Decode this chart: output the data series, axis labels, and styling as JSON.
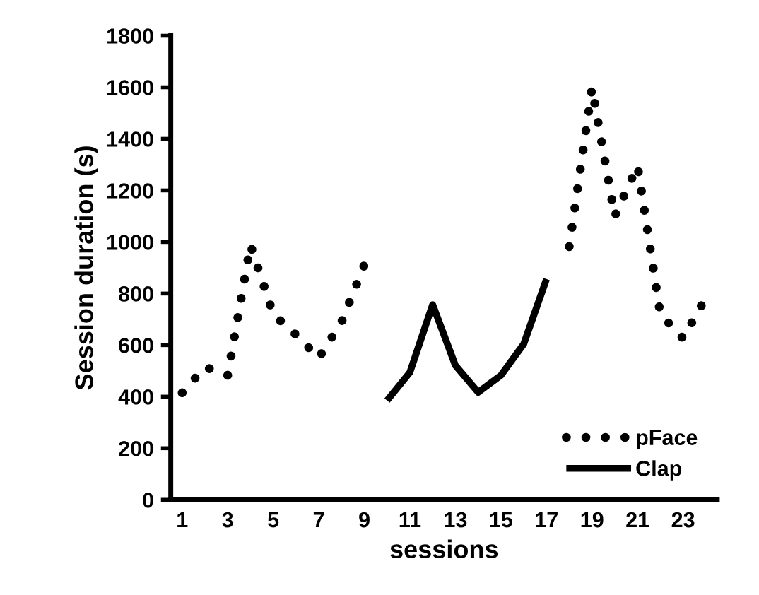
{
  "chart_data": {
    "type": "line",
    "xlabel": "sessions",
    "ylabel": "Session duration (s)",
    "x": [
      1,
      2,
      3,
      4,
      5,
      6,
      7,
      8,
      9,
      10,
      11,
      12,
      13,
      14,
      15,
      16,
      17,
      18,
      19,
      20,
      21,
      22,
      23,
      24
    ],
    "series": [
      {
        "name": "pFace",
        "color": "#000000",
        "line_style": "dotted",
        "values": [
          415,
          515,
          483,
          988,
          720,
          640,
          550,
          690,
          911,
          null,
          null,
          null,
          null,
          null,
          null,
          null,
          null,
          982,
          1597,
          1100,
          1295,
          720,
          626,
          785
        ]
      },
      {
        "name": "Clap",
        "color": "#000000",
        "line_style": "solid",
        "values": [
          null,
          null,
          null,
          null,
          null,
          null,
          null,
          null,
          null,
          385,
          494,
          757,
          521,
          417,
          483,
          604,
          856,
          null,
          null,
          null,
          null,
          null,
          null,
          null
        ]
      }
    ],
    "xlim": [
      0.5,
      24.5
    ],
    "xticks": [
      1,
      3,
      5,
      7,
      9,
      11,
      13,
      15,
      17,
      19,
      21,
      23
    ],
    "ylim": [
      0,
      1800
    ],
    "yticks": [
      0,
      200,
      400,
      600,
      800,
      1000,
      1200,
      1400,
      1600,
      1800
    ],
    "grid": false,
    "legend": "bottom right"
  }
}
